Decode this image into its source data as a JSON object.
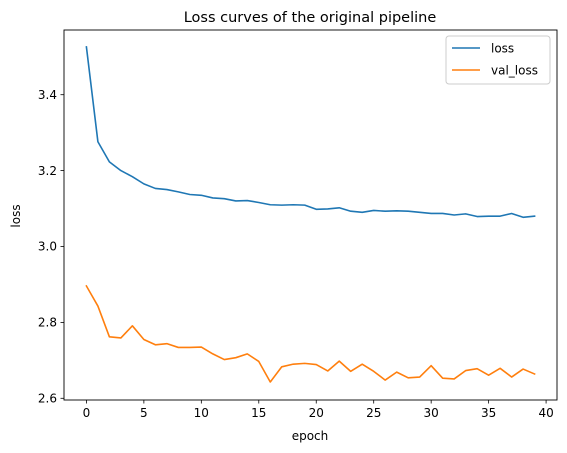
{
  "chart_data": {
    "type": "line",
    "title": "Loss curves of the original pipeline",
    "xlabel": "epoch",
    "ylabel": "loss",
    "xlim": [
      -1.95,
      40.95
    ],
    "ylim": [
      2.5955,
      3.5705
    ],
    "xticks": [
      0,
      5,
      10,
      15,
      20,
      25,
      30,
      35,
      40
    ],
    "yticks": [
      2.6,
      2.8,
      3.0,
      3.2,
      3.4
    ],
    "ytick_labels": [
      "2.6",
      "2.8",
      "3.0",
      "3.2",
      "3.4"
    ],
    "grid": false,
    "legend_position": "top-right",
    "x": [
      0,
      1,
      2,
      3,
      4,
      5,
      6,
      7,
      8,
      9,
      10,
      11,
      12,
      13,
      14,
      15,
      16,
      17,
      18,
      19,
      20,
      21,
      22,
      23,
      24,
      25,
      26,
      27,
      28,
      29,
      30,
      31,
      32,
      33,
      34,
      35,
      36,
      37,
      38,
      39
    ],
    "series": [
      {
        "name": "loss",
        "color": "#1f77b4",
        "values": [
          3.526,
          3.276,
          3.223,
          3.2,
          3.184,
          3.165,
          3.153,
          3.15,
          3.144,
          3.137,
          3.135,
          3.128,
          3.126,
          3.12,
          3.121,
          3.116,
          3.11,
          3.109,
          3.11,
          3.109,
          3.098,
          3.099,
          3.102,
          3.093,
          3.09,
          3.095,
          3.093,
          3.094,
          3.093,
          3.09,
          3.087,
          3.087,
          3.083,
          3.086,
          3.079,
          3.08,
          3.08,
          3.087,
          3.077,
          3.08
        ]
      },
      {
        "name": "val_loss",
        "color": "#ff7f0e",
        "values": [
          2.896,
          2.843,
          2.762,
          2.759,
          2.791,
          2.755,
          2.741,
          2.744,
          2.734,
          2.734,
          2.735,
          2.717,
          2.702,
          2.707,
          2.717,
          2.697,
          2.643,
          2.683,
          2.69,
          2.692,
          2.689,
          2.672,
          2.698,
          2.671,
          2.69,
          2.671,
          2.648,
          2.669,
          2.654,
          2.656,
          2.686,
          2.653,
          2.651,
          2.673,
          2.678,
          2.661,
          2.679,
          2.656,
          2.677,
          2.664
        ]
      }
    ]
  }
}
